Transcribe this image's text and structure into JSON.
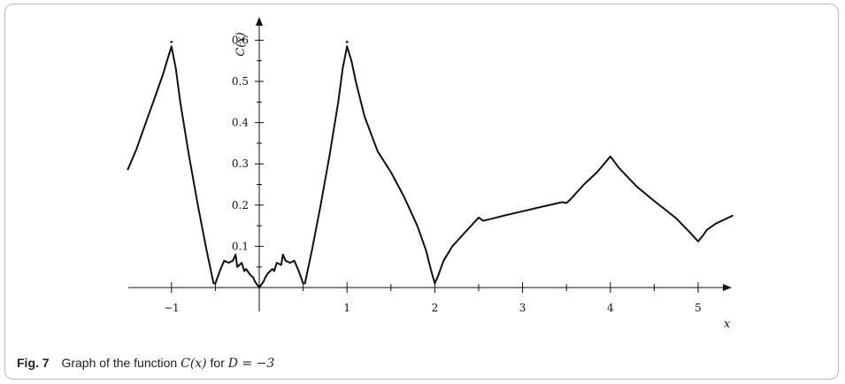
{
  "caption": {
    "label": "Fig. 7",
    "prefix": "Graph of the function",
    "fn": "C(x)",
    "mid": "for",
    "cond": "D = −3"
  },
  "chart_data": {
    "type": "line",
    "title": "",
    "xlabel": "x",
    "ylabel": "C(x)",
    "xlim": [
      -1.5,
      5.4
    ],
    "ylim": [
      0,
      0.6
    ],
    "grid": false,
    "x_ticks": [
      {
        "value": -1,
        "label": "−1"
      },
      {
        "value": 1,
        "label": "1"
      },
      {
        "value": 2,
        "label": "2"
      },
      {
        "value": 3,
        "label": "3"
      },
      {
        "value": 4,
        "label": "4"
      },
      {
        "value": 5,
        "label": "5"
      }
    ],
    "x_minor_ticks": [
      -0.5,
      0.5,
      1.5,
      2.5,
      3.5,
      4.5
    ],
    "y_ticks": [
      {
        "value": 0.1,
        "label": "0.1"
      },
      {
        "value": 0.2,
        "label": "0.2"
      },
      {
        "value": 0.3,
        "label": "0.3"
      },
      {
        "value": 0.4,
        "label": "0.4"
      },
      {
        "value": 0.5,
        "label": "0.5"
      },
      {
        "value": 0.6,
        "label": "0.6"
      }
    ],
    "y_minor_ticks": [
      0.05,
      0.15,
      0.25,
      0.35,
      0.45,
      0.55
    ],
    "markers": [
      {
        "x": -1,
        "y": 0.6
      },
      {
        "x": 1,
        "y": 0.6
      }
    ],
    "series": [
      {
        "x": [
          -1.5,
          -1.4,
          -1.3,
          -1.2,
          -1.1,
          -1.05,
          -1.0,
          -0.95,
          -0.9,
          -0.8,
          -0.7,
          -0.6,
          -0.52,
          -0.5,
          -0.45,
          -0.4,
          -0.35,
          -0.3,
          -0.27,
          -0.25,
          -0.2,
          -0.17,
          -0.15,
          -0.1,
          -0.07,
          -0.05,
          0.0,
          0.05,
          0.07,
          0.1,
          0.15,
          0.17,
          0.2,
          0.25,
          0.27,
          0.3,
          0.35,
          0.4,
          0.45,
          0.5,
          0.52,
          0.6,
          0.7,
          0.8,
          0.9,
          0.95,
          1.0,
          1.05,
          1.1,
          1.2,
          1.35,
          1.5,
          1.65,
          1.8,
          1.9,
          1.96,
          2.0,
          2.04,
          2.1,
          2.2,
          2.35,
          2.5,
          2.55,
          2.65,
          2.8,
          3.0,
          3.2,
          3.45,
          3.5,
          3.55,
          3.7,
          3.85,
          4.0,
          4.1,
          4.3,
          4.5,
          4.75,
          4.9,
          5.0,
          5.05,
          5.1,
          5.2,
          5.4
        ],
        "y": [
          0.285,
          0.335,
          0.395,
          0.455,
          0.515,
          0.55,
          0.585,
          0.53,
          0.45,
          0.32,
          0.2,
          0.09,
          0.01,
          0.01,
          0.04,
          0.065,
          0.06,
          0.065,
          0.08,
          0.05,
          0.06,
          0.04,
          0.045,
          0.03,
          0.025,
          0.015,
          0.0,
          0.015,
          0.025,
          0.035,
          0.045,
          0.04,
          0.06,
          0.055,
          0.08,
          0.065,
          0.06,
          0.065,
          0.04,
          0.01,
          0.01,
          0.09,
          0.2,
          0.32,
          0.45,
          0.53,
          0.585,
          0.55,
          0.5,
          0.415,
          0.33,
          0.28,
          0.22,
          0.15,
          0.09,
          0.04,
          0.01,
          0.03,
          0.065,
          0.1,
          0.135,
          0.17,
          0.162,
          0.167,
          0.175,
          0.185,
          0.195,
          0.207,
          0.205,
          0.215,
          0.25,
          0.28,
          0.318,
          0.29,
          0.245,
          0.21,
          0.168,
          0.135,
          0.112,
          0.125,
          0.14,
          0.155,
          0.175
        ]
      }
    ]
  }
}
